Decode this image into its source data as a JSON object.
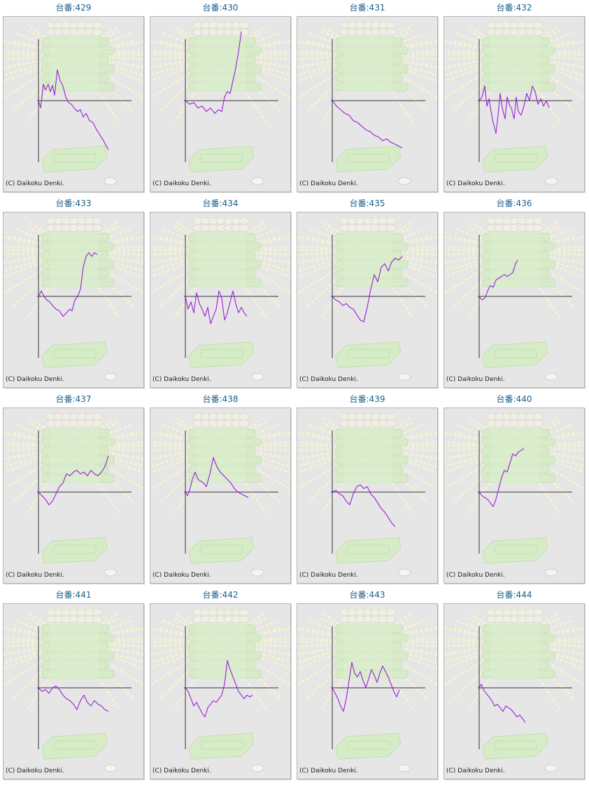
{
  "copyright": "(C) Daikoku Denki.",
  "colors": {
    "line": "#9a1fd6",
    "axis": "#333333",
    "title": "#1a5f8a",
    "panel_bg": "#e6e6e6"
  },
  "chart_data": [
    {
      "type": "line",
      "title": "台番:429",
      "points": [
        [
          0,
          0
        ],
        [
          0.03,
          -0.2
        ],
        [
          0.07,
          0.45
        ],
        [
          0.1,
          0.3
        ],
        [
          0.14,
          0.45
        ],
        [
          0.17,
          0.25
        ],
        [
          0.2,
          0.42
        ],
        [
          0.23,
          0.15
        ],
        [
          0.27,
          0.85
        ],
        [
          0.31,
          0.55
        ],
        [
          0.35,
          0.4
        ],
        [
          0.39,
          0.1
        ],
        [
          0.43,
          -0.05
        ],
        [
          0.47,
          -0.1
        ],
        [
          0.51,
          -0.2
        ],
        [
          0.56,
          -0.3
        ],
        [
          0.6,
          -0.25
        ],
        [
          0.64,
          -0.45
        ],
        [
          0.68,
          -0.35
        ],
        [
          0.73,
          -0.55
        ],
        [
          0.78,
          -0.6
        ],
        [
          0.83,
          -0.8
        ],
        [
          0.88,
          -0.95
        ],
        [
          0.93,
          -1.1
        ],
        [
          0.97,
          -1.25
        ],
        [
          1.0,
          -1.35
        ]
      ]
    },
    {
      "type": "line",
      "title": "台番:430",
      "points": [
        [
          0,
          0
        ],
        [
          0.06,
          -0.1
        ],
        [
          0.12,
          -0.05
        ],
        [
          0.18,
          -0.2
        ],
        [
          0.24,
          -0.15
        ],
        [
          0.3,
          -0.3
        ],
        [
          0.36,
          -0.2
        ],
        [
          0.42,
          -0.35
        ],
        [
          0.47,
          -0.25
        ],
        [
          0.52,
          -0.3
        ],
        [
          0.56,
          0.1
        ],
        [
          0.6,
          0.25
        ],
        [
          0.64,
          0.2
        ],
        [
          0.68,
          0.55
        ],
        [
          0.72,
          0.9
        ],
        [
          0.76,
          1.35
        ],
        [
          0.8,
          1.9
        ]
      ]
    },
    {
      "type": "line",
      "title": "台番:431",
      "points": [
        [
          0,
          0
        ],
        [
          0.06,
          -0.15
        ],
        [
          0.12,
          -0.25
        ],
        [
          0.18,
          -0.35
        ],
        [
          0.24,
          -0.4
        ],
        [
          0.3,
          -0.55
        ],
        [
          0.36,
          -0.6
        ],
        [
          0.42,
          -0.7
        ],
        [
          0.48,
          -0.8
        ],
        [
          0.54,
          -0.85
        ],
        [
          0.6,
          -0.95
        ],
        [
          0.66,
          -1.0
        ],
        [
          0.72,
          -1.1
        ],
        [
          0.78,
          -1.05
        ],
        [
          0.84,
          -1.15
        ],
        [
          0.9,
          -1.2
        ],
        [
          0.95,
          -1.25
        ],
        [
          1.0,
          -1.3
        ]
      ]
    },
    {
      "type": "line",
      "title": "台番:432",
      "points": [
        [
          0,
          0
        ],
        [
          0.04,
          0.1
        ],
        [
          0.08,
          0.4
        ],
        [
          0.11,
          -0.15
        ],
        [
          0.14,
          0.05
        ],
        [
          0.17,
          -0.3
        ],
        [
          0.2,
          -0.6
        ],
        [
          0.24,
          -0.9
        ],
        [
          0.27,
          -0.4
        ],
        [
          0.3,
          0.2
        ],
        [
          0.33,
          -0.2
        ],
        [
          0.37,
          -0.5
        ],
        [
          0.4,
          0.1
        ],
        [
          0.43,
          -0.1
        ],
        [
          0.46,
          -0.2
        ],
        [
          0.5,
          -0.5
        ],
        [
          0.53,
          0.1
        ],
        [
          0.56,
          -0.3
        ],
        [
          0.6,
          -0.4
        ],
        [
          0.64,
          -0.15
        ],
        [
          0.68,
          0.2
        ],
        [
          0.72,
          0.0
        ],
        [
          0.76,
          0.4
        ],
        [
          0.8,
          0.25
        ],
        [
          0.84,
          -0.1
        ],
        [
          0.88,
          0.05
        ],
        [
          0.92,
          -0.15
        ],
        [
          0.96,
          0.0
        ],
        [
          1.0,
          -0.2
        ]
      ]
    },
    {
      "type": "line",
      "title": "台番:433",
      "points": [
        [
          0,
          0
        ],
        [
          0.04,
          0.15
        ],
        [
          0.08,
          0.0
        ],
        [
          0.12,
          -0.1
        ],
        [
          0.16,
          -0.15
        ],
        [
          0.2,
          -0.25
        ],
        [
          0.25,
          -0.35
        ],
        [
          0.3,
          -0.4
        ],
        [
          0.35,
          -0.55
        ],
        [
          0.4,
          -0.45
        ],
        [
          0.45,
          -0.35
        ],
        [
          0.48,
          -0.4
        ],
        [
          0.52,
          -0.1
        ],
        [
          0.56,
          0.0
        ],
        [
          0.6,
          0.2
        ],
        [
          0.64,
          0.8
        ],
        [
          0.68,
          1.1
        ],
        [
          0.72,
          1.2
        ],
        [
          0.76,
          1.1
        ],
        [
          0.8,
          1.2
        ],
        [
          0.84,
          1.15
        ]
      ]
    },
    {
      "type": "line",
      "title": "台番:434",
      "points": [
        [
          0,
          0
        ],
        [
          0.04,
          -0.35
        ],
        [
          0.08,
          -0.15
        ],
        [
          0.12,
          -0.45
        ],
        [
          0.16,
          0.1
        ],
        [
          0.2,
          -0.2
        ],
        [
          0.24,
          -0.35
        ],
        [
          0.28,
          -0.55
        ],
        [
          0.32,
          -0.3
        ],
        [
          0.36,
          -0.75
        ],
        [
          0.4,
          -0.55
        ],
        [
          0.44,
          -0.35
        ],
        [
          0.48,
          0.15
        ],
        [
          0.52,
          -0.05
        ],
        [
          0.56,
          -0.65
        ],
        [
          0.6,
          -0.45
        ],
        [
          0.64,
          -0.15
        ],
        [
          0.68,
          0.15
        ],
        [
          0.72,
          -0.2
        ],
        [
          0.76,
          -0.45
        ],
        [
          0.8,
          -0.3
        ],
        [
          0.84,
          -0.45
        ],
        [
          0.88,
          -0.55
        ]
      ]
    },
    {
      "type": "line",
      "title": "台番:435",
      "points": [
        [
          0,
          0
        ],
        [
          0.05,
          -0.1
        ],
        [
          0.1,
          -0.15
        ],
        [
          0.15,
          -0.25
        ],
        [
          0.2,
          -0.2
        ],
        [
          0.25,
          -0.3
        ],
        [
          0.3,
          -0.35
        ],
        [
          0.35,
          -0.5
        ],
        [
          0.4,
          -0.65
        ],
        [
          0.45,
          -0.7
        ],
        [
          0.5,
          -0.3
        ],
        [
          0.55,
          0.2
        ],
        [
          0.6,
          0.6
        ],
        [
          0.65,
          0.4
        ],
        [
          0.7,
          0.8
        ],
        [
          0.75,
          0.9
        ],
        [
          0.8,
          0.7
        ],
        [
          0.85,
          0.95
        ],
        [
          0.9,
          1.05
        ],
        [
          0.95,
          1.0
        ],
        [
          1.0,
          1.1
        ]
      ]
    },
    {
      "type": "line",
      "title": "台番:436",
      "points": [
        [
          0,
          0
        ],
        [
          0.04,
          -0.1
        ],
        [
          0.08,
          -0.05
        ],
        [
          0.12,
          0.15
        ],
        [
          0.16,
          0.3
        ],
        [
          0.2,
          0.25
        ],
        [
          0.24,
          0.45
        ],
        [
          0.28,
          0.5
        ],
        [
          0.32,
          0.55
        ],
        [
          0.36,
          0.6
        ],
        [
          0.4,
          0.55
        ],
        [
          0.44,
          0.6
        ],
        [
          0.48,
          0.65
        ],
        [
          0.52,
          0.9
        ],
        [
          0.55,
          1.0
        ]
      ]
    },
    {
      "type": "line",
      "title": "台番:437",
      "points": [
        [
          0,
          0
        ],
        [
          0.05,
          -0.1
        ],
        [
          0.1,
          -0.2
        ],
        [
          0.15,
          -0.35
        ],
        [
          0.2,
          -0.25
        ],
        [
          0.25,
          -0.05
        ],
        [
          0.3,
          0.15
        ],
        [
          0.35,
          0.25
        ],
        [
          0.4,
          0.5
        ],
        [
          0.45,
          0.45
        ],
        [
          0.5,
          0.55
        ],
        [
          0.55,
          0.6
        ],
        [
          0.6,
          0.5
        ],
        [
          0.65,
          0.55
        ],
        [
          0.7,
          0.45
        ],
        [
          0.75,
          0.6
        ],
        [
          0.8,
          0.5
        ],
        [
          0.85,
          0.45
        ],
        [
          0.9,
          0.55
        ],
        [
          0.95,
          0.7
        ],
        [
          1.0,
          1.0
        ]
      ]
    },
    {
      "type": "line",
      "title": "台番:438",
      "points": [
        [
          0,
          0
        ],
        [
          0.03,
          -0.1
        ],
        [
          0.06,
          0.05
        ],
        [
          0.1,
          0.35
        ],
        [
          0.14,
          0.55
        ],
        [
          0.18,
          0.35
        ],
        [
          0.22,
          0.3
        ],
        [
          0.26,
          0.25
        ],
        [
          0.3,
          0.15
        ],
        [
          0.35,
          0.5
        ],
        [
          0.4,
          0.95
        ],
        [
          0.45,
          0.7
        ],
        [
          0.5,
          0.55
        ],
        [
          0.55,
          0.45
        ],
        [
          0.6,
          0.35
        ],
        [
          0.65,
          0.25
        ],
        [
          0.7,
          0.1
        ],
        [
          0.75,
          0.0
        ],
        [
          0.8,
          -0.05
        ],
        [
          0.85,
          -0.1
        ],
        [
          0.9,
          -0.15
        ]
      ]
    },
    {
      "type": "line",
      "title": "台番:439",
      "points": [
        [
          0,
          0
        ],
        [
          0.05,
          0.05
        ],
        [
          0.1,
          -0.05
        ],
        [
          0.15,
          -0.1
        ],
        [
          0.2,
          -0.25
        ],
        [
          0.25,
          -0.35
        ],
        [
          0.3,
          -0.05
        ],
        [
          0.35,
          0.15
        ],
        [
          0.4,
          0.2
        ],
        [
          0.45,
          0.1
        ],
        [
          0.5,
          0.15
        ],
        [
          0.55,
          -0.05
        ],
        [
          0.6,
          -0.15
        ],
        [
          0.65,
          -0.3
        ],
        [
          0.7,
          -0.45
        ],
        [
          0.75,
          -0.55
        ],
        [
          0.8,
          -0.7
        ],
        [
          0.85,
          -0.85
        ],
        [
          0.9,
          -0.95
        ]
      ]
    },
    {
      "type": "line",
      "title": "台番:440",
      "points": [
        [
          0,
          0
        ],
        [
          0.04,
          -0.1
        ],
        [
          0.08,
          -0.15
        ],
        [
          0.12,
          -0.2
        ],
        [
          0.16,
          -0.3
        ],
        [
          0.2,
          -0.4
        ],
        [
          0.24,
          -0.2
        ],
        [
          0.28,
          0.1
        ],
        [
          0.32,
          0.4
        ],
        [
          0.36,
          0.6
        ],
        [
          0.4,
          0.55
        ],
        [
          0.44,
          0.8
        ],
        [
          0.48,
          1.05
        ],
        [
          0.52,
          1.0
        ],
        [
          0.56,
          1.1
        ],
        [
          0.6,
          1.15
        ],
        [
          0.64,
          1.2
        ]
      ]
    },
    {
      "type": "line",
      "title": "台番:441",
      "points": [
        [
          0,
          0
        ],
        [
          0.05,
          -0.1
        ],
        [
          0.1,
          -0.05
        ],
        [
          0.15,
          -0.15
        ],
        [
          0.2,
          0.0
        ],
        [
          0.25,
          0.05
        ],
        [
          0.3,
          -0.05
        ],
        [
          0.35,
          -0.2
        ],
        [
          0.4,
          -0.3
        ],
        [
          0.45,
          -0.35
        ],
        [
          0.5,
          -0.45
        ],
        [
          0.55,
          -0.6
        ],
        [
          0.6,
          -0.35
        ],
        [
          0.65,
          -0.2
        ],
        [
          0.7,
          -0.4
        ],
        [
          0.75,
          -0.5
        ],
        [
          0.8,
          -0.35
        ],
        [
          0.85,
          -0.45
        ],
        [
          0.9,
          -0.5
        ],
        [
          0.95,
          -0.6
        ],
        [
          1.0,
          -0.65
        ]
      ]
    },
    {
      "type": "line",
      "title": "台番:442",
      "points": [
        [
          0,
          0
        ],
        [
          0.04,
          -0.1
        ],
        [
          0.08,
          -0.3
        ],
        [
          0.12,
          -0.5
        ],
        [
          0.16,
          -0.4
        ],
        [
          0.2,
          -0.55
        ],
        [
          0.24,
          -0.7
        ],
        [
          0.28,
          -0.8
        ],
        [
          0.32,
          -0.55
        ],
        [
          0.36,
          -0.45
        ],
        [
          0.4,
          -0.35
        ],
        [
          0.44,
          -0.4
        ],
        [
          0.48,
          -0.3
        ],
        [
          0.52,
          -0.2
        ],
        [
          0.56,
          0.1
        ],
        [
          0.6,
          0.75
        ],
        [
          0.64,
          0.5
        ],
        [
          0.68,
          0.3
        ],
        [
          0.72,
          0.1
        ],
        [
          0.76,
          -0.1
        ],
        [
          0.8,
          -0.2
        ],
        [
          0.84,
          -0.3
        ],
        [
          0.88,
          -0.2
        ],
        [
          0.92,
          -0.25
        ],
        [
          0.96,
          -0.2
        ]
      ]
    },
    {
      "type": "line",
      "title": "台番:443",
      "points": [
        [
          0,
          0
        ],
        [
          0.04,
          -0.15
        ],
        [
          0.08,
          -0.3
        ],
        [
          0.12,
          -0.5
        ],
        [
          0.16,
          -0.65
        ],
        [
          0.2,
          -0.3
        ],
        [
          0.24,
          0.2
        ],
        [
          0.28,
          0.7
        ],
        [
          0.32,
          0.4
        ],
        [
          0.36,
          0.3
        ],
        [
          0.4,
          0.45
        ],
        [
          0.44,
          0.2
        ],
        [
          0.48,
          0.0
        ],
        [
          0.52,
          0.25
        ],
        [
          0.56,
          0.5
        ],
        [
          0.6,
          0.35
        ],
        [
          0.64,
          0.15
        ],
        [
          0.68,
          0.4
        ],
        [
          0.72,
          0.6
        ],
        [
          0.76,
          0.45
        ],
        [
          0.8,
          0.3
        ],
        [
          0.84,
          0.1
        ],
        [
          0.88,
          -0.1
        ],
        [
          0.92,
          -0.25
        ],
        [
          0.96,
          -0.05
        ]
      ]
    },
    {
      "type": "line",
      "title": "台番:444",
      "points": [
        [
          0,
          0
        ],
        [
          0.03,
          0.1
        ],
        [
          0.06,
          -0.05
        ],
        [
          0.1,
          -0.15
        ],
        [
          0.14,
          -0.25
        ],
        [
          0.18,
          -0.35
        ],
        [
          0.22,
          -0.5
        ],
        [
          0.26,
          -0.45
        ],
        [
          0.3,
          -0.55
        ],
        [
          0.34,
          -0.65
        ],
        [
          0.38,
          -0.5
        ],
        [
          0.42,
          -0.55
        ],
        [
          0.46,
          -0.6
        ],
        [
          0.5,
          -0.7
        ],
        [
          0.54,
          -0.8
        ],
        [
          0.58,
          -0.75
        ],
        [
          0.62,
          -0.85
        ],
        [
          0.66,
          -0.95
        ]
      ]
    }
  ]
}
